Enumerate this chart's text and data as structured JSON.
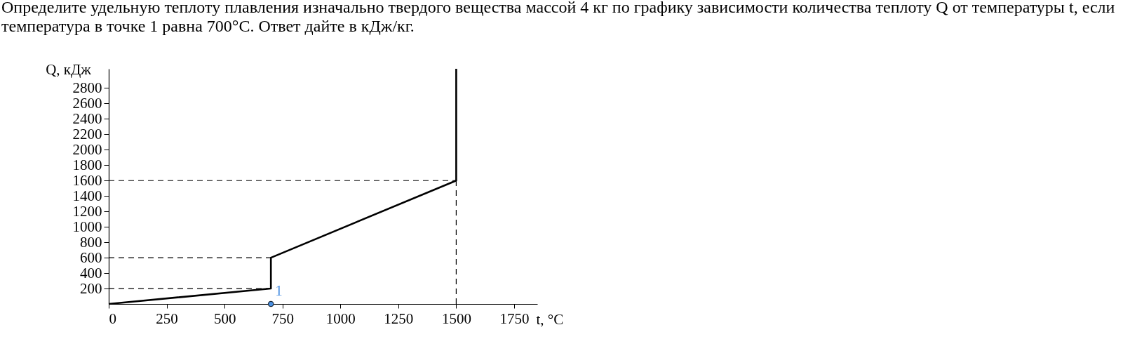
{
  "chart_data": {
    "type": "line",
    "title": "Определите удельную теплоту плавления изначально твердого вещества массой 4 кг по графику зависимости количества теплоту Q от температуры t, если температура в точке 1 равна 700°C. Ответ дайте в кДж/кг.",
    "xlabel": "t, °C",
    "ylabel": "Q, кДж",
    "xlim": [
      0,
      1850
    ],
    "ylim": [
      0,
      3050
    ],
    "xticks": [
      0,
      250,
      500,
      750,
      1000,
      1250,
      1500,
      1750
    ],
    "yticks": [
      200,
      400,
      600,
      800,
      1000,
      1200,
      1400,
      1600,
      1800,
      2000,
      2200,
      2400,
      2600,
      2800
    ],
    "series": [
      {
        "color": "#000000",
        "x": [
          0,
          700,
          700,
          1500,
          1500
        ],
        "values": [
          0,
          200,
          600,
          1600,
          3050
        ]
      },
      {
        "type": "scatter",
        "color": "#4a90e2",
        "marker": "circle",
        "x": [
          700
        ],
        "values": [
          0
        ]
      }
    ],
    "ref_lines": [
      {
        "axis": "y",
        "value": 200,
        "color": "#000000",
        "line_style": "dashed"
      },
      {
        "axis": "y",
        "value": 600,
        "color": "#000000",
        "line_style": "dashed"
      },
      {
        "axis": "y",
        "value": 1600,
        "color": "#000000",
        "line_style": "dashed"
      },
      {
        "axis": "x",
        "value": 1500,
        "color": "#000000",
        "line_style": "dashed"
      }
    ],
    "annotations": [
      {
        "text": "1",
        "x": 700,
        "y": 0
      }
    ]
  }
}
